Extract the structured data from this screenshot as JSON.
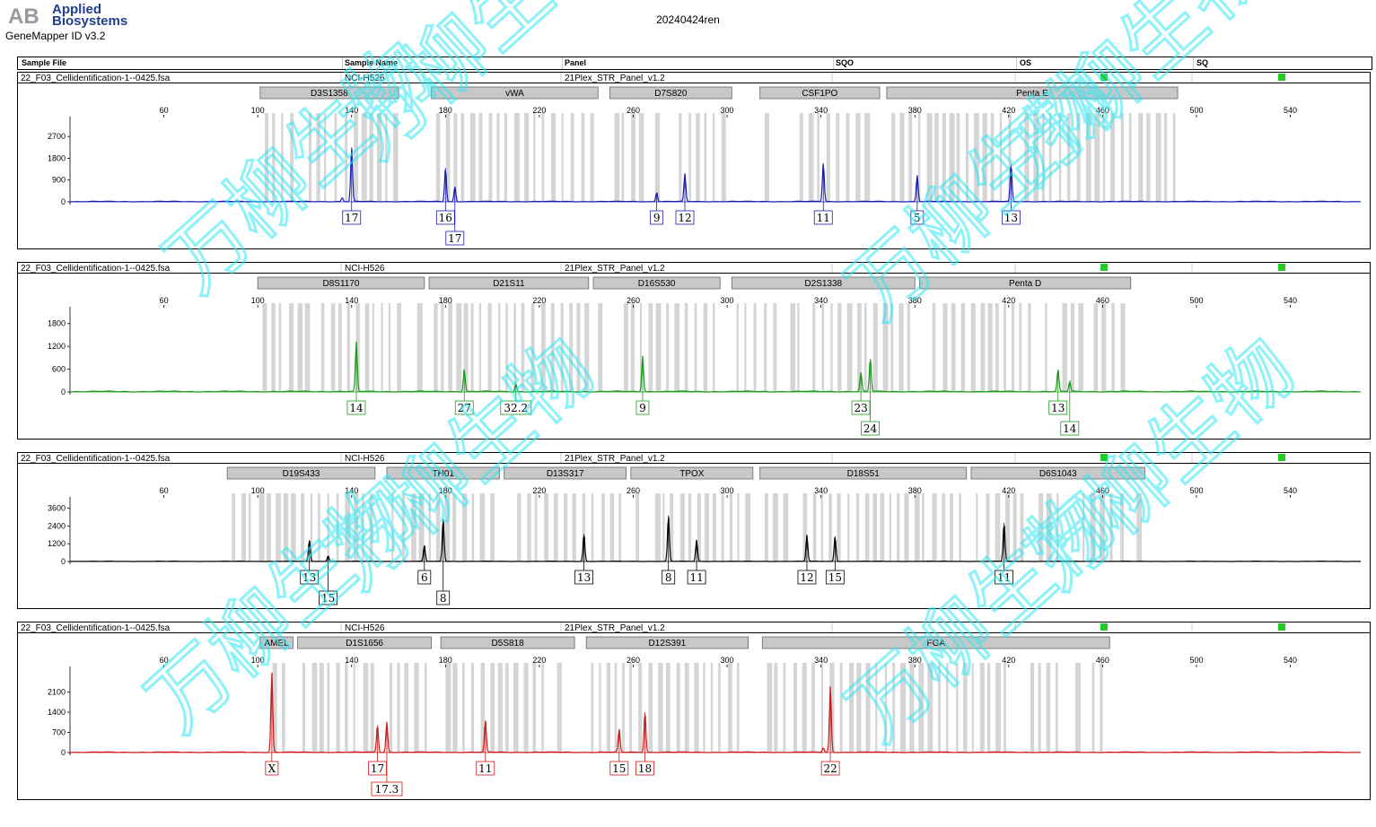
{
  "header": {
    "logo_text_1": "Applied",
    "logo_text_2": "Biosystems",
    "app_version": "GeneMapper ID v3.2",
    "run_name": "20240424ren",
    "watermark_text": "万柳生物"
  },
  "columns": [
    "Sample File",
    "Sample Name",
    "Panel",
    "SQO",
    "OS",
    "SQ"
  ],
  "colors": {
    "blue": "#1b1bb0",
    "green": "#1a9a1a",
    "black": "#000000",
    "red": "#cc1a1a",
    "bin": "#d0d0d0",
    "marker_bg": "#c8c8c8",
    "quality_ok": "#22cc22",
    "watermark": "#2ee6f2"
  },
  "x_axis": {
    "min": 20,
    "max": 570,
    "ticks": [
      60,
      100,
      140,
      180,
      220,
      260,
      300,
      340,
      380,
      420,
      460,
      500,
      540
    ]
  },
  "chart_data": [
    {
      "type": "line",
      "dye": "blue",
      "sample_file": "22_F03_Cellidentification-1--0425.fsa",
      "sample_name": "NCI-H526",
      "panel": "21Plex_STR_Panel_v1.2",
      "ylim": [
        0,
        3300
      ],
      "yticks": [
        0,
        900,
        1800,
        2700
      ],
      "markers": [
        {
          "name": "D3S1358",
          "start": 101,
          "end": 160
        },
        {
          "name": "vWA",
          "start": 174,
          "end": 245
        },
        {
          "name": "D7S820",
          "start": 250,
          "end": 302
        },
        {
          "name": "CSF1PO",
          "start": 314,
          "end": 365
        },
        {
          "name": "Penta E",
          "start": 368,
          "end": 492
        }
      ],
      "peaks": [
        {
          "x": 140,
          "height": 2250,
          "label": "17"
        },
        {
          "x": 136,
          "height": 150
        },
        {
          "x": 180,
          "height": 1400,
          "label": "16"
        },
        {
          "x": 184,
          "height": 620,
          "label": "17"
        },
        {
          "x": 270,
          "height": 380,
          "label": "9"
        },
        {
          "x": 282,
          "height": 1150,
          "label": "12"
        },
        {
          "x": 341,
          "height": 1600,
          "label": "11"
        },
        {
          "x": 381,
          "height": 1100,
          "label": "5"
        },
        {
          "x": 421,
          "height": 1550,
          "label": "13"
        }
      ]
    },
    {
      "type": "line",
      "dye": "green",
      "sample_file": "22_F03_Cellidentification-1--0425.fsa",
      "sample_name": "NCI-H526",
      "panel": "21Plex_STR_Panel_v1.2",
      "ylim": [
        0,
        2100
      ],
      "yticks": [
        0,
        600,
        1200,
        1800
      ],
      "markers": [
        {
          "name": "D8S1170",
          "start": 100,
          "end": 171
        },
        {
          "name": "D21S11",
          "start": 173,
          "end": 241
        },
        {
          "name": "D16S530",
          "start": 243,
          "end": 297
        },
        {
          "name": "D2S1338",
          "start": 302,
          "end": 380
        },
        {
          "name": "Penta D",
          "start": 382,
          "end": 472
        }
      ],
      "peaks": [
        {
          "x": 142,
          "height": 1300,
          "label": "14"
        },
        {
          "x": 188,
          "height": 600,
          "label": "27"
        },
        {
          "x": 210,
          "height": 200,
          "label": "32.2"
        },
        {
          "x": 264,
          "height": 950,
          "label": "9"
        },
        {
          "x": 357,
          "height": 500,
          "label": "23"
        },
        {
          "x": 361,
          "height": 870,
          "label": "24"
        },
        {
          "x": 441,
          "height": 580,
          "label": "13"
        },
        {
          "x": 446,
          "height": 260,
          "label": "14"
        }
      ]
    },
    {
      "type": "line",
      "dye": "black",
      "sample_file": "22_F03_Cellidentification-1--0425.fsa",
      "sample_name": "NCI-H526",
      "panel": "21Plex_STR_Panel_v1.2",
      "ylim": [
        0,
        4000
      ],
      "yticks": [
        0,
        1200,
        2400,
        3600
      ],
      "markers": [
        {
          "name": "D19S433",
          "start": 87,
          "end": 150
        },
        {
          "name": "TH01",
          "start": 155,
          "end": 203
        },
        {
          "name": "D13S317",
          "start": 205,
          "end": 257
        },
        {
          "name": "TPOX",
          "start": 259,
          "end": 311
        },
        {
          "name": "D18S51",
          "start": 314,
          "end": 402
        },
        {
          "name": "D6S1043",
          "start": 404,
          "end": 478
        }
      ],
      "peaks": [
        {
          "x": 122,
          "height": 1450,
          "label": "13"
        },
        {
          "x": 130,
          "height": 380,
          "label": "15"
        },
        {
          "x": 171,
          "height": 1080,
          "label": "6"
        },
        {
          "x": 179,
          "height": 2900,
          "label": "8"
        },
        {
          "x": 239,
          "height": 1850,
          "label": "13"
        },
        {
          "x": 275,
          "height": 3100,
          "label": "8"
        },
        {
          "x": 287,
          "height": 1450,
          "label": "11"
        },
        {
          "x": 334,
          "height": 1780,
          "label": "12"
        },
        {
          "x": 346,
          "height": 1700,
          "label": "15"
        },
        {
          "x": 418,
          "height": 2600,
          "label": "11"
        }
      ]
    },
    {
      "type": "line",
      "dye": "red",
      "sample_file": "22_F03_Cellidentification-1--0425.fsa",
      "sample_name": "NCI-H526",
      "panel": "21Plex_STR_Panel_v1.2",
      "ylim": [
        0,
        2800
      ],
      "yticks": [
        0,
        700,
        1400,
        2100
      ],
      "markers": [
        {
          "name": "AMEL",
          "start": 101,
          "end": 115
        },
        {
          "name": "D1S1656",
          "start": 117,
          "end": 174
        },
        {
          "name": "D5S818",
          "start": 178,
          "end": 235
        },
        {
          "name": "D12S391",
          "start": 240,
          "end": 309
        },
        {
          "name": "FGA",
          "start": 315,
          "end": 463
        }
      ],
      "peaks": [
        {
          "x": 106,
          "height": 2780,
          "label": "X"
        },
        {
          "x": 151,
          "height": 950,
          "label": "17"
        },
        {
          "x": 155,
          "height": 1050,
          "label": "17.3"
        },
        {
          "x": 197,
          "height": 1100,
          "label": "11"
        },
        {
          "x": 254,
          "height": 800,
          "label": "15"
        },
        {
          "x": 265,
          "height": 1400,
          "label": "18"
        },
        {
          "x": 344,
          "height": 2300,
          "label": "22"
        },
        {
          "x": 341,
          "height": 150
        }
      ]
    }
  ]
}
